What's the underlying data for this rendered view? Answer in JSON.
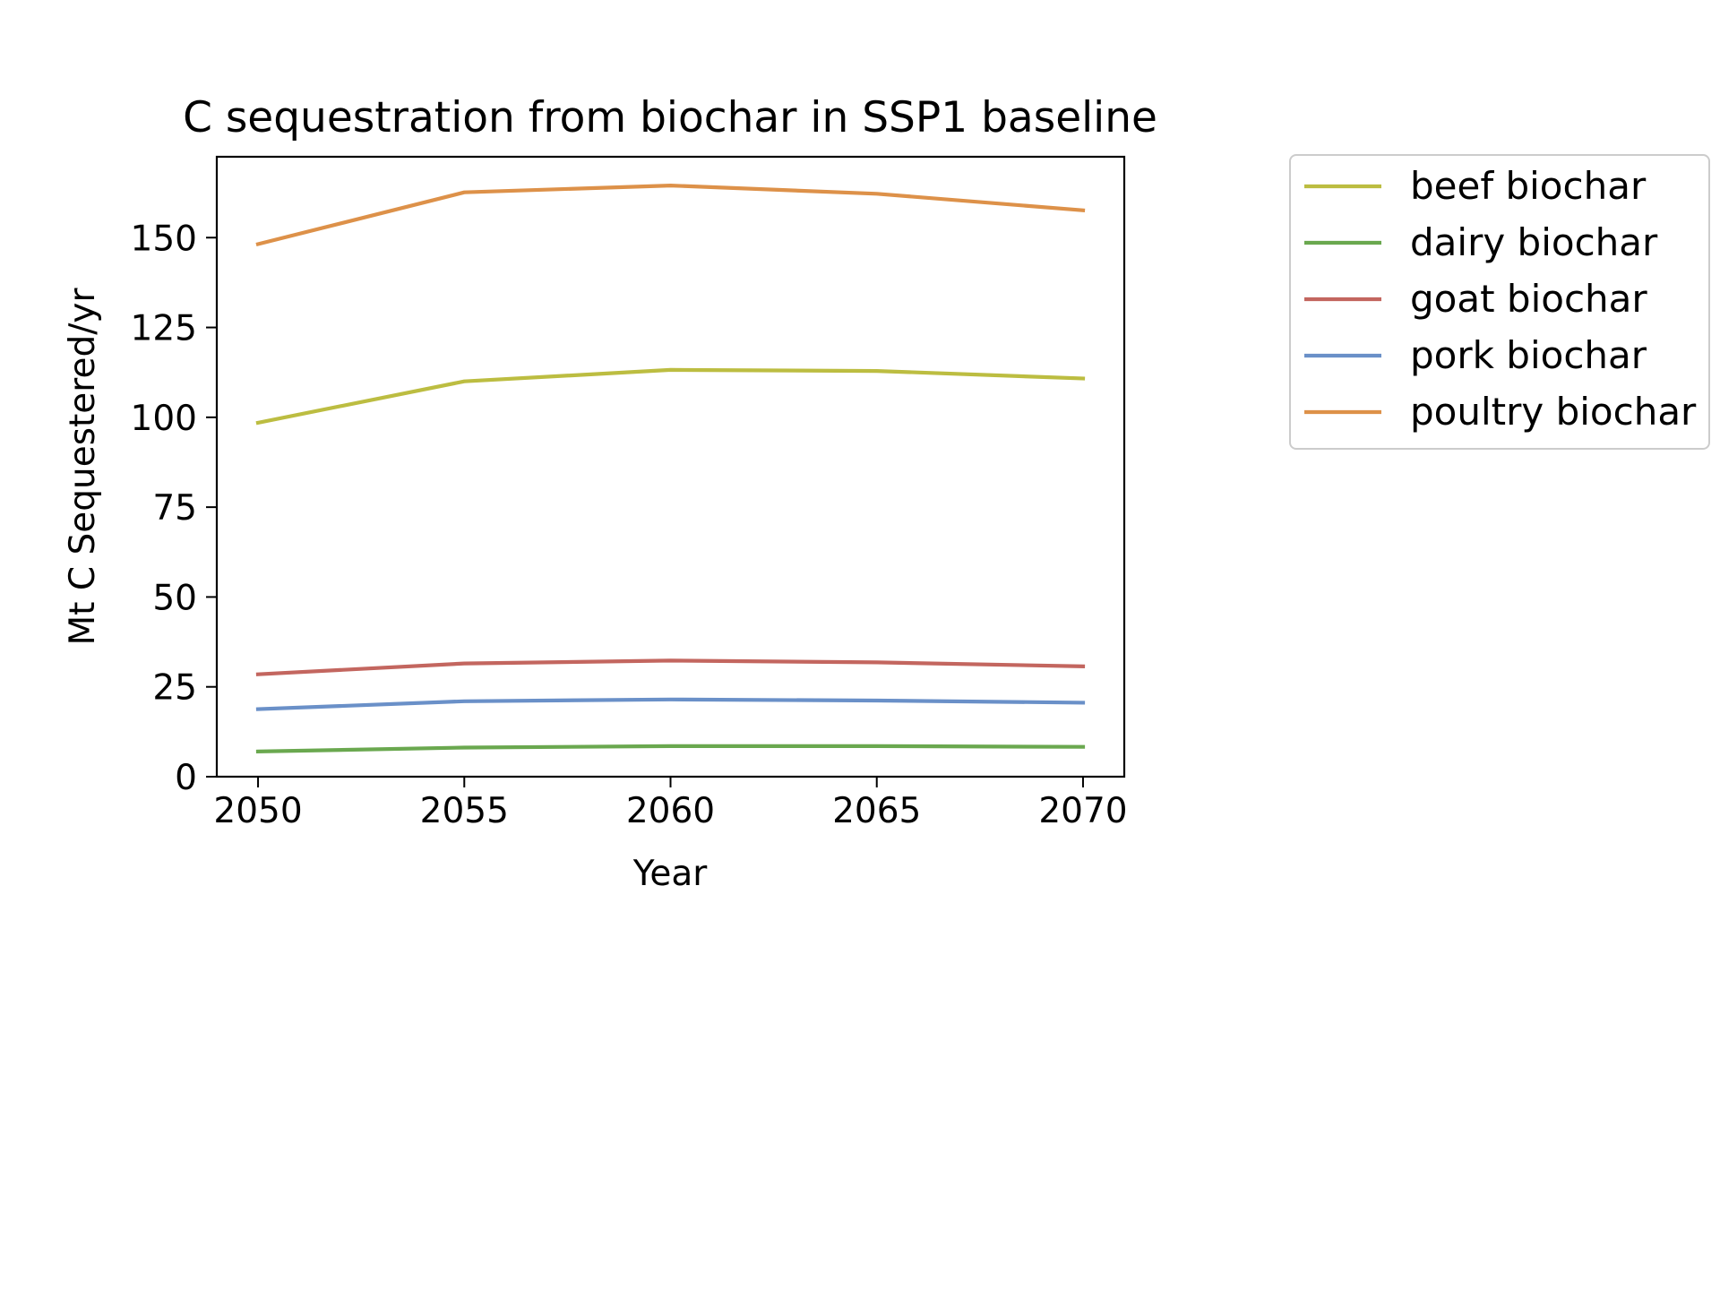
{
  "chart_data": {
    "type": "line",
    "title": "C sequestration from biochar in SSP1 baseline",
    "xlabel": "Year",
    "ylabel": "Mt C Sequestered/yr",
    "x": [
      2050,
      2055,
      2060,
      2065,
      2070
    ],
    "xticks": [
      2050,
      2055,
      2060,
      2065,
      2070
    ],
    "yticks": [
      0,
      25,
      50,
      75,
      100,
      125,
      150
    ],
    "xlim": [
      2049,
      2071
    ],
    "ylim": [
      0,
      172.5
    ],
    "grid": false,
    "legend_position": "outside-right-top",
    "series": [
      {
        "name": "beef biochar",
        "color": "#bcbd41",
        "values": [
          98.5,
          110.0,
          113.2,
          112.9,
          110.8
        ]
      },
      {
        "name": "dairy biochar",
        "color": "#6aa84f",
        "values": [
          7.0,
          8.1,
          8.5,
          8.5,
          8.3
        ]
      },
      {
        "name": "goat biochar",
        "color": "#c3665f",
        "values": [
          28.5,
          31.5,
          32.3,
          31.8,
          30.7
        ]
      },
      {
        "name": "pork biochar",
        "color": "#6a90c8",
        "values": [
          18.8,
          21.0,
          21.5,
          21.2,
          20.6
        ]
      },
      {
        "name": "poultry biochar",
        "color": "#dd9149",
        "values": [
          148.2,
          162.6,
          164.5,
          162.2,
          157.6
        ]
      }
    ]
  }
}
